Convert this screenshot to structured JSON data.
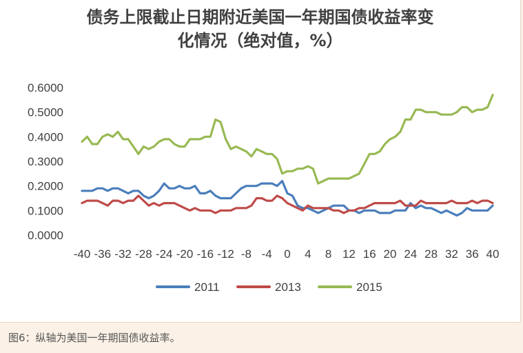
{
  "caption": "图6：纵轴为美国一年期国债收益率。",
  "chart_data": {
    "type": "line",
    "title_lines": [
      "债务上限截止日期附近美国一年期国债收益率变",
      "化情况（绝对值，%）"
    ],
    "xlabel": "",
    "ylabel": "",
    "ylim": [
      0,
      0.6
    ],
    "xlim": [
      -40,
      40
    ],
    "y_ticks": [
      "0.0000",
      "0.1000",
      "0.2000",
      "0.3000",
      "0.4000",
      "0.5000",
      "0.6000"
    ],
    "x_ticks": [
      "-40",
      "-36",
      "-32",
      "-28",
      "-24",
      "-20",
      "-16",
      "-12",
      "-8",
      "-4",
      "0",
      "4",
      "8",
      "12",
      "16",
      "20",
      "24",
      "28",
      "32",
      "36",
      "40"
    ],
    "grid": false,
    "legend_position": "bottom",
    "x": [
      -40,
      -39,
      -38,
      -37,
      -36,
      -35,
      -34,
      -33,
      -32,
      -31,
      -30,
      -29,
      -28,
      -27,
      -26,
      -25,
      -24,
      -23,
      -22,
      -21,
      -20,
      -19,
      -18,
      -17,
      -16,
      -15,
      -14,
      -13,
      -12,
      -11,
      -10,
      -9,
      -8,
      -7,
      -6,
      -5,
      -4,
      -3,
      -2,
      -1,
      0,
      1,
      2,
      3,
      4,
      5,
      6,
      7,
      8,
      9,
      10,
      11,
      12,
      13,
      14,
      15,
      16,
      17,
      18,
      19,
      20,
      21,
      22,
      23,
      24,
      25,
      26,
      27,
      28,
      29,
      30,
      31,
      32,
      33,
      34,
      35,
      36,
      37,
      38,
      39,
      40
    ],
    "series": [
      {
        "name": "2011",
        "color": "#4a7ebb",
        "values": [
          0.18,
          0.18,
          0.18,
          0.19,
          0.19,
          0.18,
          0.19,
          0.19,
          0.18,
          0.17,
          0.18,
          0.18,
          0.16,
          0.15,
          0.16,
          0.18,
          0.21,
          0.19,
          0.19,
          0.2,
          0.19,
          0.19,
          0.2,
          0.17,
          0.17,
          0.18,
          0.16,
          0.15,
          0.15,
          0.15,
          0.17,
          0.19,
          0.2,
          0.2,
          0.2,
          0.21,
          0.21,
          0.21,
          0.2,
          0.22,
          0.17,
          0.16,
          0.12,
          0.11,
          0.11,
          0.1,
          0.09,
          0.1,
          0.11,
          0.12,
          0.12,
          0.12,
          0.1,
          0.1,
          0.09,
          0.1,
          0.1,
          0.1,
          0.09,
          0.09,
          0.09,
          0.1,
          0.1,
          0.1,
          0.13,
          0.11,
          0.12,
          0.11,
          0.11,
          0.1,
          0.09,
          0.1,
          0.09,
          0.08,
          0.09,
          0.11,
          0.1,
          0.1,
          0.1,
          0.1,
          0.12
        ]
      },
      {
        "name": "2013",
        "color": "#be4b48",
        "values": [
          0.13,
          0.14,
          0.14,
          0.14,
          0.13,
          0.12,
          0.14,
          0.14,
          0.13,
          0.14,
          0.14,
          0.16,
          0.14,
          0.12,
          0.13,
          0.12,
          0.13,
          0.13,
          0.13,
          0.12,
          0.11,
          0.1,
          0.11,
          0.1,
          0.1,
          0.1,
          0.09,
          0.1,
          0.1,
          0.1,
          0.11,
          0.11,
          0.11,
          0.12,
          0.15,
          0.15,
          0.14,
          0.14,
          0.16,
          0.15,
          0.13,
          0.12,
          0.11,
          0.1,
          0.12,
          0.11,
          0.11,
          0.11,
          0.11,
          0.1,
          0.1,
          0.09,
          0.1,
          0.1,
          0.11,
          0.11,
          0.12,
          0.13,
          0.13,
          0.13,
          0.13,
          0.13,
          0.14,
          0.12,
          0.12,
          0.12,
          0.14,
          0.13,
          0.13,
          0.13,
          0.13,
          0.13,
          0.14,
          0.13,
          0.13,
          0.13,
          0.14,
          0.13,
          0.14,
          0.14,
          0.13
        ]
      },
      {
        "name": "2015",
        "color": "#98b954",
        "values": [
          0.38,
          0.4,
          0.37,
          0.37,
          0.4,
          0.41,
          0.4,
          0.42,
          0.39,
          0.39,
          0.36,
          0.33,
          0.36,
          0.35,
          0.36,
          0.38,
          0.39,
          0.39,
          0.37,
          0.36,
          0.36,
          0.39,
          0.39,
          0.39,
          0.4,
          0.4,
          0.47,
          0.46,
          0.39,
          0.35,
          0.36,
          0.35,
          0.34,
          0.32,
          0.35,
          0.34,
          0.33,
          0.33,
          0.31,
          0.25,
          0.26,
          0.26,
          0.27,
          0.27,
          0.28,
          0.27,
          0.21,
          0.22,
          0.23,
          0.23,
          0.23,
          0.23,
          0.23,
          0.24,
          0.25,
          0.29,
          0.33,
          0.33,
          0.34,
          0.37,
          0.39,
          0.4,
          0.42,
          0.47,
          0.47,
          0.51,
          0.51,
          0.5,
          0.5,
          0.5,
          0.49,
          0.49,
          0.49,
          0.5,
          0.52,
          0.52,
          0.5,
          0.51,
          0.51,
          0.52,
          0.57
        ]
      }
    ]
  }
}
